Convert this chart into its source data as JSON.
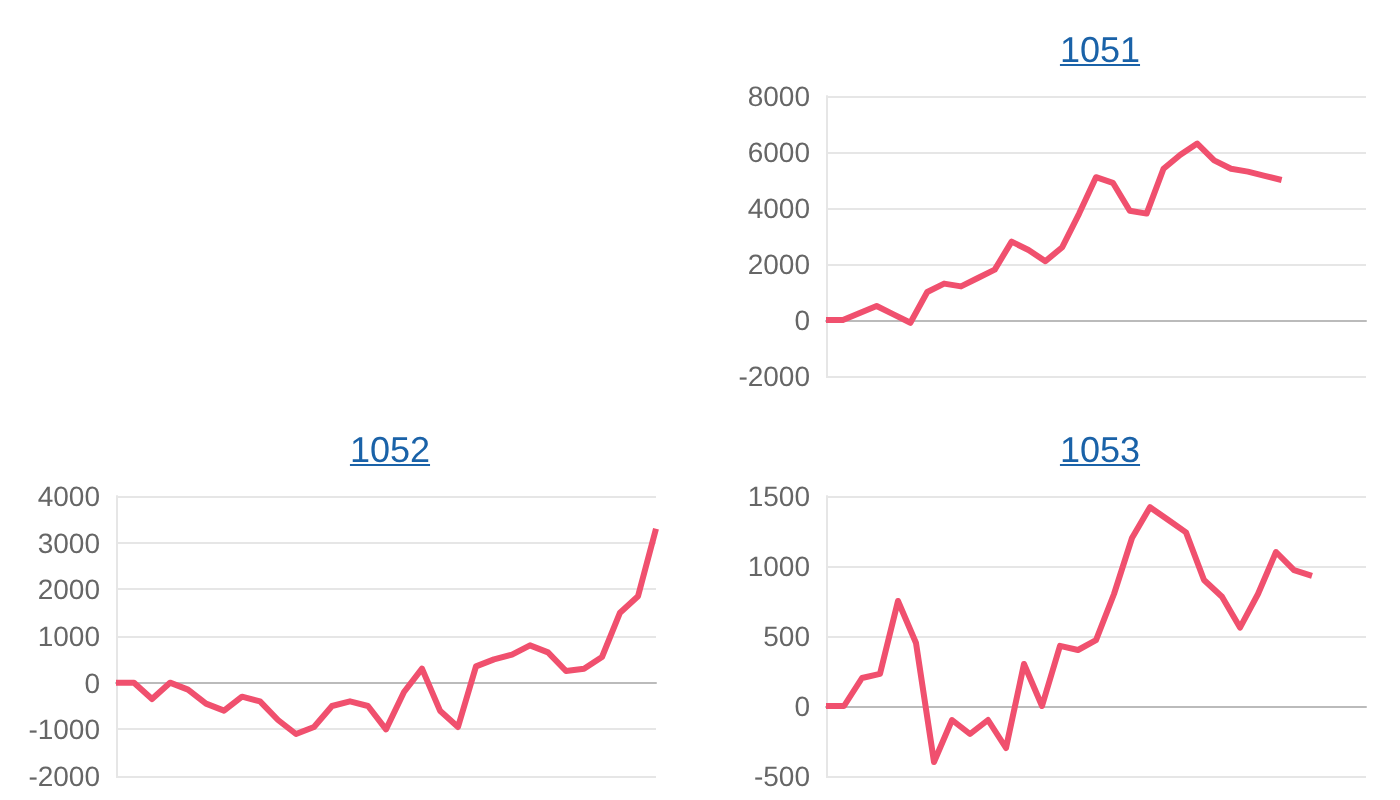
{
  "chart_data": [
    {
      "type": "line",
      "title": "1051",
      "categories": [
        null,
        null,
        null,
        null,
        null,
        null,
        null,
        null,
        null,
        null,
        null,
        null,
        null,
        null,
        null,
        null,
        null,
        null,
        null,
        null,
        null,
        null,
        null,
        null,
        null,
        null,
        null,
        null,
        null,
        null,
        null,
        null,
        null
      ],
      "series": [
        {
          "color": "#f0506e",
          "values": [
            0,
            0,
            250,
            500,
            200,
            -100,
            1000,
            1300,
            1200,
            1500,
            1800,
            2800,
            2500,
            2100,
            2600,
            3800,
            5100,
            4900,
            3900,
            3800,
            5400,
            5900,
            6300,
            5700,
            5400,
            5300,
            5150,
            5000,
            null,
            null,
            null,
            null,
            null
          ]
        }
      ],
      "ylim": [
        -2000,
        8000
      ],
      "yticks": [
        -2000,
        0,
        2000,
        4000,
        6000,
        8000
      ],
      "grid": "y",
      "marker": "none",
      "tick_labels": "y"
    },
    {
      "type": "line",
      "title": "1052",
      "categories": [
        null,
        null,
        null,
        null,
        null,
        null,
        null,
        null,
        null,
        null,
        null,
        null,
        null,
        null,
        null,
        null,
        null,
        null,
        null,
        null,
        null,
        null,
        null,
        null,
        null,
        null,
        null,
        null,
        null,
        null,
        null
      ],
      "series": [
        {
          "color": "#f0506e",
          "values": [
            0,
            0,
            -350,
            0,
            -150,
            -450,
            -600,
            -300,
            -400,
            -800,
            -1100,
            -950,
            -500,
            -400,
            -500,
            -1000,
            -200,
            300,
            -600,
            -950,
            350,
            500,
            600,
            800,
            650,
            250,
            300,
            550,
            1500,
            1850,
            3300
          ]
        }
      ],
      "ylim": [
        -2000,
        4000
      ],
      "yticks": [
        -2000,
        -1000,
        0,
        1000,
        2000,
        3000,
        4000
      ],
      "grid": "y",
      "marker": "none",
      "tick_labels": "y"
    },
    {
      "type": "line",
      "title": "1053",
      "categories": [
        null,
        null,
        null,
        null,
        null,
        null,
        null,
        null,
        null,
        null,
        null,
        null,
        null,
        null,
        null,
        null,
        null,
        null,
        null,
        null,
        null,
        null,
        null,
        null,
        null,
        null,
        null,
        null,
        null,
        null,
        null
      ],
      "series": [
        {
          "color": "#f0506e",
          "values": [
            0,
            0,
            200,
            230,
            750,
            450,
            -400,
            -100,
            -200,
            -100,
            -300,
            300,
            0,
            430,
            400,
            470,
            800,
            1200,
            1420,
            1330,
            1240,
            900,
            780,
            560,
            800,
            1100,
            970,
            930,
            null,
            null,
            null
          ]
        }
      ],
      "ylim": [
        -500,
        1500
      ],
      "yticks": [
        -500,
        0,
        500,
        1000,
        1500
      ],
      "grid": "y",
      "marker": "none",
      "tick_labels": "y"
    }
  ]
}
